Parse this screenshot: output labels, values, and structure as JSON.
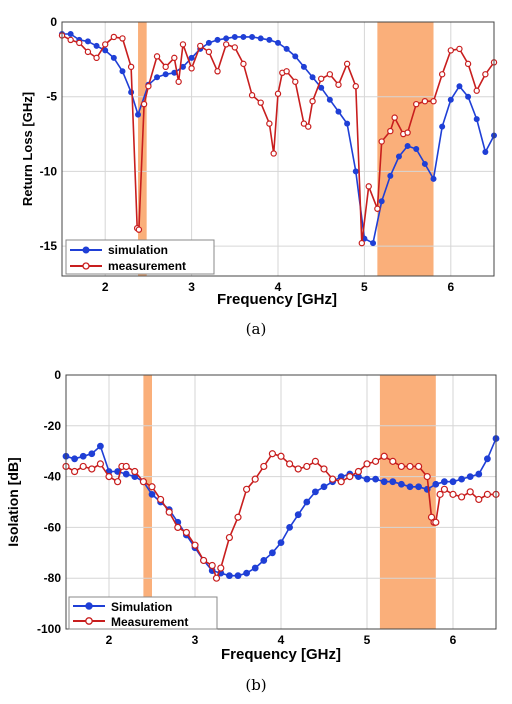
{
  "chart_data": [
    {
      "type": "line",
      "ylabel": "Return Loss [GHz]",
      "xlabel": "Frequency [GHz]",
      "caption": "(a)",
      "xlim": [
        1.5,
        6.5
      ],
      "ylim": [
        -17,
        0
      ],
      "xticks": [
        2,
        3,
        4,
        5,
        6
      ],
      "yticks": [
        0,
        -5,
        -10,
        -15
      ],
      "grid": true,
      "legend_position": "bottom-left",
      "bands": [
        [
          2.38,
          2.48
        ],
        [
          5.15,
          5.8
        ]
      ],
      "band_color": "#f9a66b",
      "series": [
        {
          "name": "simulation",
          "color": "#1f3fd6",
          "marker": "filled-circle",
          "x": [
            1.5,
            1.6,
            1.7,
            1.8,
            1.9,
            2.0,
            2.1,
            2.2,
            2.3,
            2.38,
            2.5,
            2.6,
            2.7,
            2.8,
            2.9,
            3.0,
            3.1,
            3.2,
            3.3,
            3.4,
            3.5,
            3.6,
            3.7,
            3.8,
            3.9,
            4.0,
            4.1,
            4.2,
            4.3,
            4.4,
            4.5,
            4.6,
            4.7,
            4.8,
            4.9,
            5.0,
            5.1,
            5.2,
            5.3,
            5.4,
            5.5,
            5.6,
            5.7,
            5.8,
            5.9,
            6.0,
            6.1,
            6.2,
            6.3,
            6.4,
            6.5
          ],
          "y": [
            -0.8,
            -0.8,
            -1.2,
            -1.3,
            -1.6,
            -1.9,
            -2.4,
            -3.3,
            -4.7,
            -6.2,
            -4.2,
            -3.7,
            -3.5,
            -3.4,
            -3.0,
            -2.4,
            -1.8,
            -1.4,
            -1.2,
            -1.1,
            -1.0,
            -1.0,
            -1.0,
            -1.1,
            -1.2,
            -1.4,
            -1.8,
            -2.3,
            -3.0,
            -3.7,
            -4.4,
            -5.2,
            -6.0,
            -6.8,
            -10.0,
            -14.5,
            -14.8,
            -12.0,
            -10.3,
            -9.0,
            -8.3,
            -8.5,
            -9.5,
            -10.5,
            -7.0,
            -5.2,
            -4.3,
            -5.0,
            -6.5,
            -8.7,
            -7.6
          ]
        },
        {
          "name": "measurement",
          "color": "#c81e1e",
          "marker": "open-circle",
          "x": [
            1.5,
            1.6,
            1.7,
            1.8,
            1.9,
            2.0,
            2.1,
            2.2,
            2.3,
            2.37,
            2.39,
            2.45,
            2.5,
            2.6,
            2.7,
            2.8,
            2.85,
            2.9,
            3.0,
            3.1,
            3.2,
            3.3,
            3.4,
            3.5,
            3.6,
            3.7,
            3.8,
            3.9,
            3.95,
            4.0,
            4.05,
            4.1,
            4.2,
            4.3,
            4.35,
            4.4,
            4.5,
            4.6,
            4.7,
            4.8,
            4.9,
            4.97,
            5.05,
            5.15,
            5.2,
            5.3,
            5.35,
            5.45,
            5.5,
            5.6,
            5.7,
            5.8,
            5.9,
            6.0,
            6.1,
            6.2,
            6.3,
            6.4,
            6.5
          ],
          "y": [
            -0.9,
            -1.2,
            -1.4,
            -2.0,
            -2.4,
            -1.5,
            -1.0,
            -1.1,
            -3.0,
            -13.8,
            -13.9,
            -5.5,
            -4.3,
            -2.3,
            -3.0,
            -2.4,
            -4.0,
            -1.5,
            -3.1,
            -1.6,
            -2.0,
            -3.3,
            -1.5,
            -1.7,
            -2.8,
            -4.9,
            -5.4,
            -6.8,
            -8.8,
            -4.8,
            -3.4,
            -3.3,
            -4.0,
            -6.8,
            -7.0,
            -5.3,
            -3.8,
            -3.5,
            -4.2,
            -2.8,
            -4.3,
            -14.8,
            -11.0,
            -12.5,
            -8.0,
            -7.3,
            -6.4,
            -7.5,
            -7.4,
            -5.5,
            -5.3,
            -5.3,
            -3.5,
            -1.9,
            -1.8,
            -2.8,
            -4.6,
            -3.5,
            -2.7
          ]
        }
      ]
    },
    {
      "type": "line",
      "ylabel": "Isolation [dB]",
      "xlabel": "Frequency [GHz]",
      "caption": "(b)",
      "xlim": [
        1.5,
        6.5
      ],
      "ylim": [
        -100,
        0
      ],
      "xticks": [
        2,
        3,
        4,
        5,
        6
      ],
      "yticks": [
        0,
        -20,
        -40,
        -60,
        -80,
        -100
      ],
      "grid": true,
      "legend_position": "bottom-left",
      "bands": [
        [
          2.4,
          2.5
        ],
        [
          5.15,
          5.8
        ]
      ],
      "band_color": "#f9a66b",
      "series": [
        {
          "name": "Simulation",
          "color": "#1f3fd6",
          "marker": "filled-circle",
          "x": [
            1.5,
            1.6,
            1.7,
            1.8,
            1.9,
            2.0,
            2.1,
            2.2,
            2.3,
            2.4,
            2.5,
            2.6,
            2.7,
            2.8,
            2.9,
            3.0,
            3.1,
            3.2,
            3.3,
            3.4,
            3.5,
            3.6,
            3.7,
            3.8,
            3.9,
            4.0,
            4.1,
            4.2,
            4.3,
            4.4,
            4.5,
            4.6,
            4.7,
            4.8,
            4.9,
            5.0,
            5.1,
            5.2,
            5.3,
            5.4,
            5.5,
            5.6,
            5.7,
            5.8,
            5.9,
            6.0,
            6.1,
            6.2,
            6.3,
            6.4,
            6.5
          ],
          "y": [
            -32,
            -33,
            -32,
            -31,
            -28,
            -38,
            -38,
            -39,
            -40,
            -42,
            -47,
            -50,
            -53,
            -58,
            -63,
            -68,
            -73,
            -77,
            -78,
            -79,
            -79,
            -78,
            -76,
            -73,
            -70,
            -66,
            -60,
            -55,
            -50,
            -46,
            -44,
            -42,
            -40,
            -39,
            -40,
            -41,
            -41,
            -42,
            -42,
            -43,
            -44,
            -44,
            -45,
            -43,
            -42,
            -42,
            -41,
            -40,
            -39,
            -33,
            -25
          ]
        },
        {
          "name": "Measurement",
          "color": "#c81e1e",
          "marker": "open-circle",
          "x": [
            1.5,
            1.6,
            1.7,
            1.8,
            1.9,
            2.0,
            2.1,
            2.15,
            2.2,
            2.3,
            2.4,
            2.5,
            2.6,
            2.7,
            2.8,
            2.9,
            3.0,
            3.1,
            3.2,
            3.25,
            3.3,
            3.4,
            3.5,
            3.6,
            3.7,
            3.8,
            3.9,
            4.0,
            4.1,
            4.2,
            4.3,
            4.4,
            4.5,
            4.6,
            4.7,
            4.8,
            4.9,
            5.0,
            5.1,
            5.2,
            5.3,
            5.4,
            5.5,
            5.6,
            5.7,
            5.75,
            5.78,
            5.8,
            5.85,
            5.9,
            6.0,
            6.1,
            6.2,
            6.3,
            6.4,
            6.5
          ],
          "y": [
            -36,
            -38,
            -36,
            -37,
            -35,
            -40,
            -42,
            -36,
            -36,
            -38,
            -42,
            -44,
            -49,
            -54,
            -60,
            -62,
            -67,
            -73,
            -75,
            -80,
            -76,
            -64,
            -56,
            -45,
            -41,
            -36,
            -31,
            -32,
            -35,
            -37,
            -36,
            -34,
            -37,
            -41,
            -42,
            -40,
            -38,
            -35,
            -34,
            -32,
            -34,
            -36,
            -36,
            -36,
            -40,
            -56,
            -58,
            -58,
            -47,
            -45,
            -47,
            -48,
            -46,
            -49,
            -47,
            -47
          ]
        }
      ]
    }
  ]
}
